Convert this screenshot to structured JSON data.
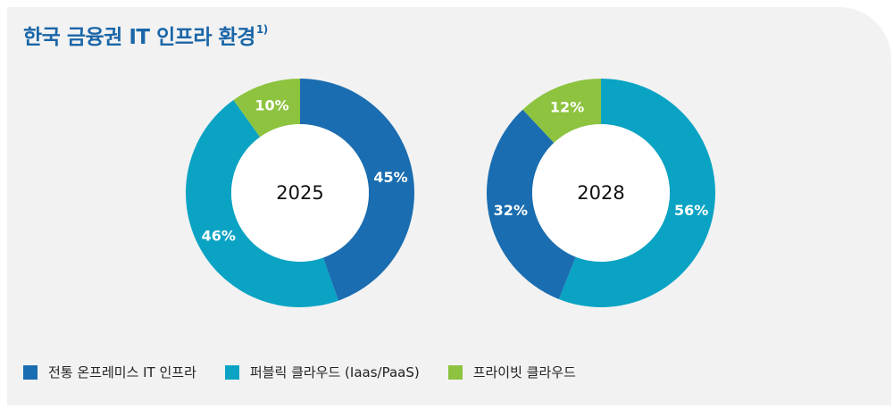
{
  "title": "한국 금융권 IT 인프라 환경",
  "title_note": "1)",
  "chart_data": {
    "type": "pie",
    "donut": true,
    "series_names": [
      "전통 온프레미스 IT 인프라",
      "퍼블릭 클라우드 (Iaas/PaaS)",
      "프라이빗 클라우드"
    ],
    "colors": [
      "#1a6db0",
      "#0aa3c4",
      "#8dc33f"
    ],
    "charts": [
      {
        "center_label": "2025",
        "values": [
          45,
          46,
          10
        ],
        "labels": [
          "45%",
          "46%",
          "10%"
        ]
      },
      {
        "center_label": "2028",
        "values": [
          32,
          56,
          12
        ],
        "labels": [
          "32%",
          "56%",
          "12%"
        ]
      }
    ]
  },
  "legend": [
    {
      "label": "전통 온프레미스 IT 인프라",
      "color": "#1a6db0"
    },
    {
      "label": "퍼블릭 클라우드 (Iaas/PaaS)",
      "color": "#0aa3c4"
    },
    {
      "label": "프라이빗 클라우드",
      "color": "#8dc33f"
    }
  ]
}
